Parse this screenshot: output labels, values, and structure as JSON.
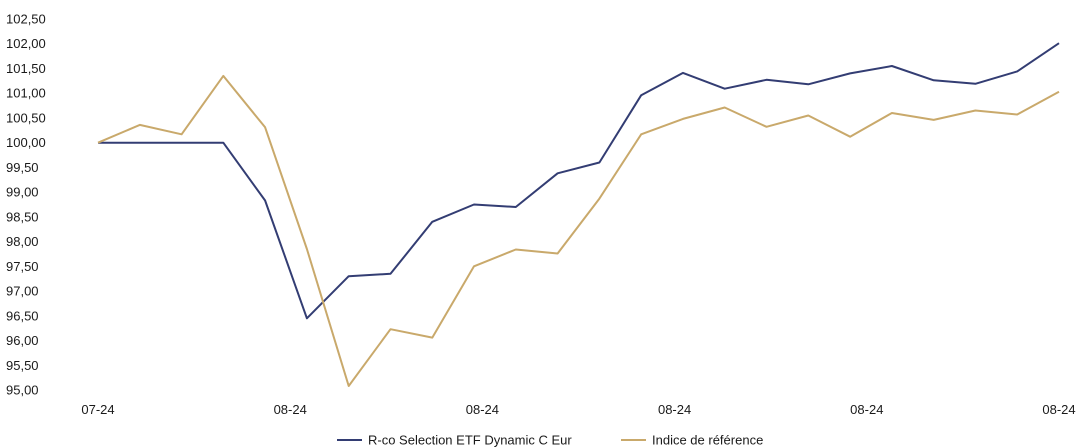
{
  "chart_data": {
    "type": "line",
    "title": "",
    "xlabel": "",
    "ylabel": "",
    "ylim": [
      95.0,
      102.5
    ],
    "y_ticks": [
      "95,00",
      "95,50",
      "96,00",
      "96,50",
      "97,00",
      "97,50",
      "98,00",
      "98,50",
      "99,00",
      "99,50",
      "100,00",
      "100,50",
      "101,00",
      "101,50",
      "102,00",
      "102,50"
    ],
    "x_tick_labels": [
      "07-24",
      "08-24",
      "08-24",
      "08-24",
      "08-24",
      "08-24"
    ],
    "grid": false,
    "legend_position": "bottom",
    "series": [
      {
        "name": "R-co Selection ETF Dynamic C Eur",
        "color": "#333d73",
        "values": [
          100.0,
          100.0,
          100.0,
          100.0,
          98.83,
          96.45,
          97.3,
          97.35,
          98.4,
          98.75,
          98.7,
          99.38,
          99.6,
          100.96,
          101.41,
          101.09,
          101.27,
          101.18,
          101.4,
          101.55,
          101.26,
          101.19,
          101.44,
          102.01
        ]
      },
      {
        "name": "Indice de référence",
        "color": "#c9a96b",
        "values": [
          100.0,
          100.36,
          100.17,
          101.35,
          100.31,
          97.85,
          95.08,
          96.23,
          96.06,
          97.5,
          97.84,
          97.76,
          98.87,
          100.17,
          100.48,
          100.71,
          100.32,
          100.55,
          100.12,
          100.6,
          100.46,
          100.65,
          100.57,
          101.03
        ]
      }
    ]
  }
}
